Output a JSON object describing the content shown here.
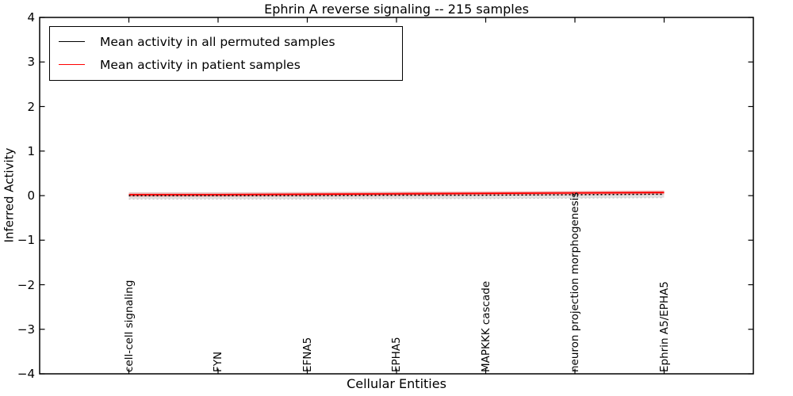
{
  "figure": {
    "title": "Ephrin A  reverse signaling -- 215 samples",
    "xlabel": "Cellular Entities",
    "ylabel": "Inferred Activity"
  },
  "legend": {
    "position": "upper left",
    "items": [
      {
        "label": "Mean activity in all permuted samples",
        "color": "#000000"
      },
      {
        "label": "Mean activity in patient samples",
        "color": "#ff0000"
      }
    ]
  },
  "colors": {
    "axis": "#000000",
    "permuted_line": "#000000",
    "patient_line": "#ff0000",
    "permuted_band": "#bbbbbb",
    "patient_band": "#ff9999"
  },
  "chart_data": {
    "type": "line",
    "title": "Ephrin A  reverse signaling -- 215 samples",
    "xlabel": "Cellular Entities",
    "ylabel": "Inferred Activity",
    "categories": [
      "cell-cell signaling",
      "FYN",
      "EFNA5",
      "EPHA5",
      "MAPKKK cascade",
      "neuron projection morphogenesis",
      "Ephrin A5/EPHA5"
    ],
    "ylim": [
      -4,
      4
    ],
    "yticks": [
      4,
      3,
      2,
      1,
      0,
      -1,
      -2,
      -3,
      -4
    ],
    "grid": false,
    "legend_position": "upper left",
    "series": [
      {
        "name": "Mean activity in all permuted samples",
        "color": "#000000",
        "linestyle": "dotted-appearance",
        "values": [
          0.0,
          0.0,
          0.0,
          0.01,
          0.01,
          0.02,
          0.03
        ],
        "band_halfwidth": 0.075
      },
      {
        "name": "Mean activity in patient samples",
        "color": "#ff0000",
        "linestyle": "solid",
        "values": [
          0.02,
          0.02,
          0.03,
          0.04,
          0.05,
          0.06,
          0.07
        ],
        "band_halfwidth": 0.05
      }
    ]
  }
}
